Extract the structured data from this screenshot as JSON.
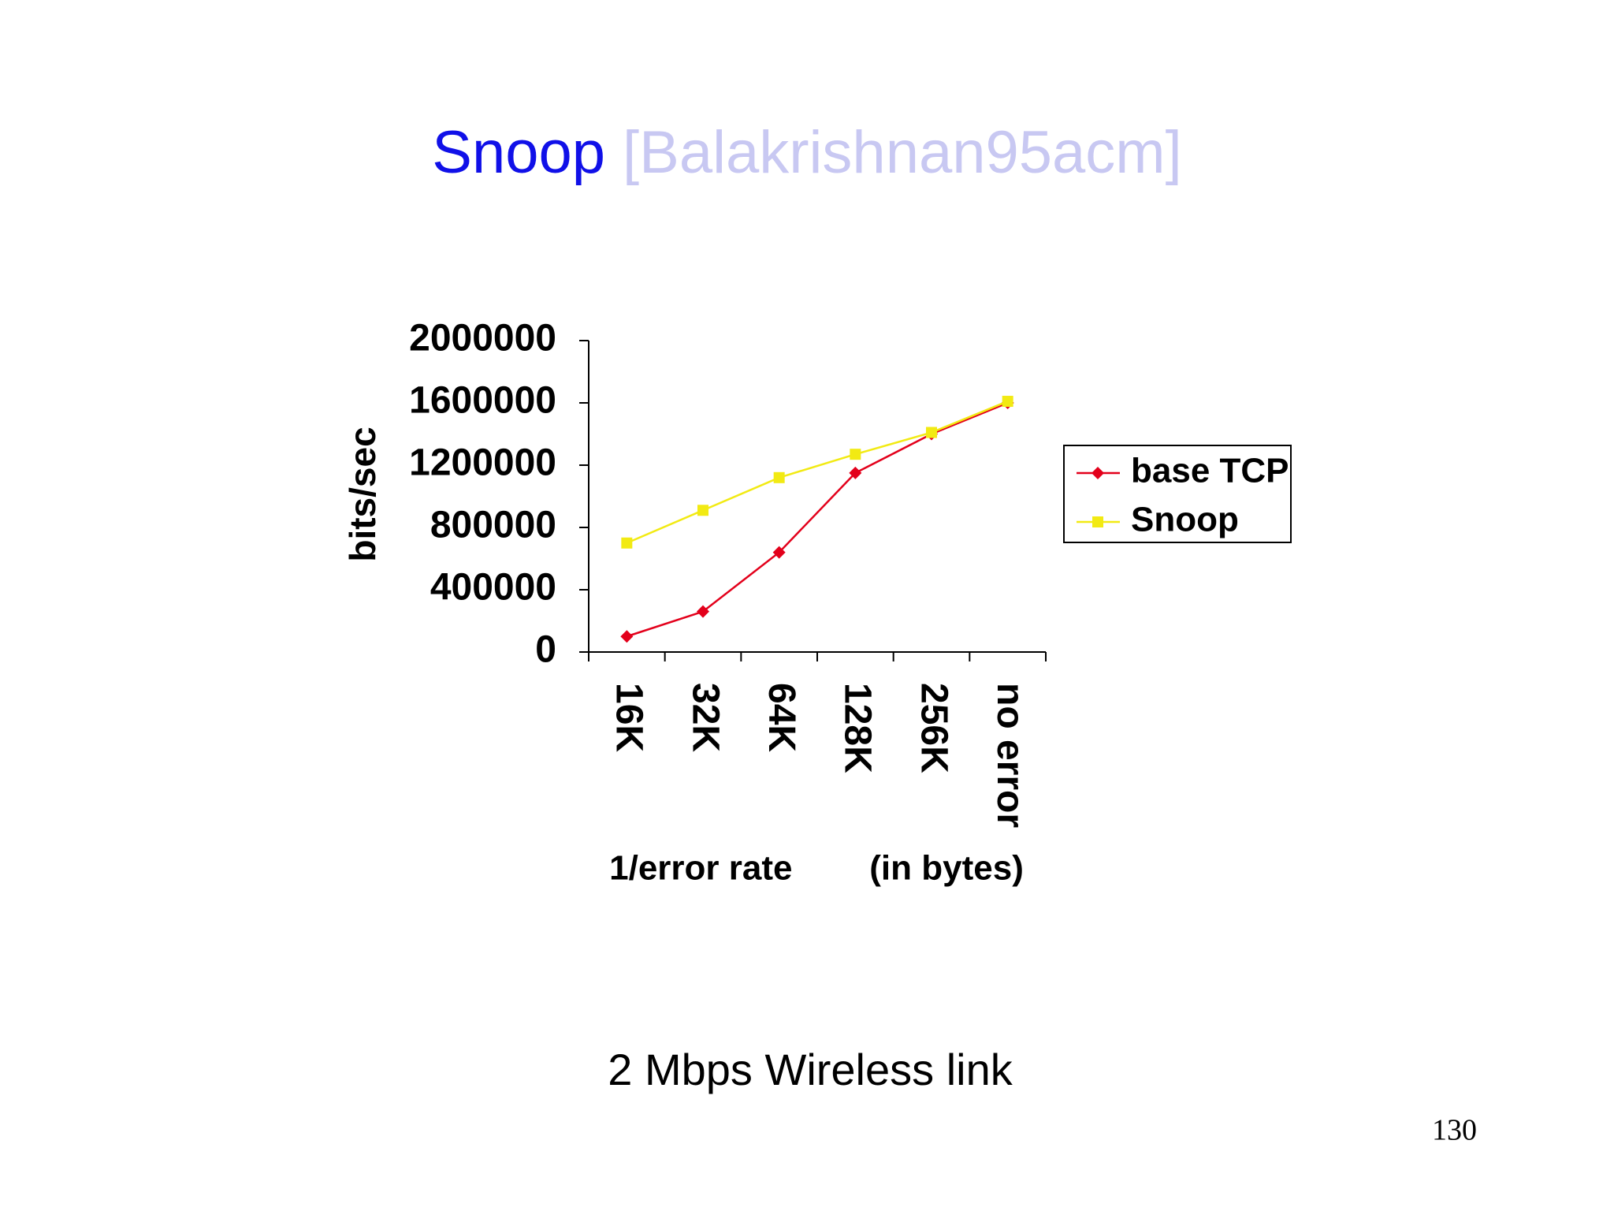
{
  "slide": {
    "title": "Snoop",
    "citation": "[Balakrishnan95acm]",
    "caption": "2 Mbps Wireless link",
    "page_number": "130"
  },
  "chart_data": {
    "type": "line",
    "y_label": "bits/sec",
    "x_label": "1/error rate        (in bytes)",
    "categories": [
      "16K",
      "32K",
      "64K",
      "128K",
      "256K",
      "no error"
    ],
    "series": [
      {
        "name": "base TCP",
        "color": "#e3001b",
        "marker": "diamond",
        "values": [
          100000,
          260000,
          640000,
          1150000,
          1400000,
          1600000
        ]
      },
      {
        "name": "Snoop",
        "color": "#f2ea13",
        "marker": "square",
        "values": [
          700000,
          910000,
          1120000,
          1270000,
          1410000,
          1610000
        ]
      }
    ],
    "ylim": [
      0,
      2000000
    ],
    "yticks": [
      0,
      400000,
      800000,
      1200000,
      1600000,
      2000000
    ],
    "grid": false,
    "legend": "right"
  }
}
